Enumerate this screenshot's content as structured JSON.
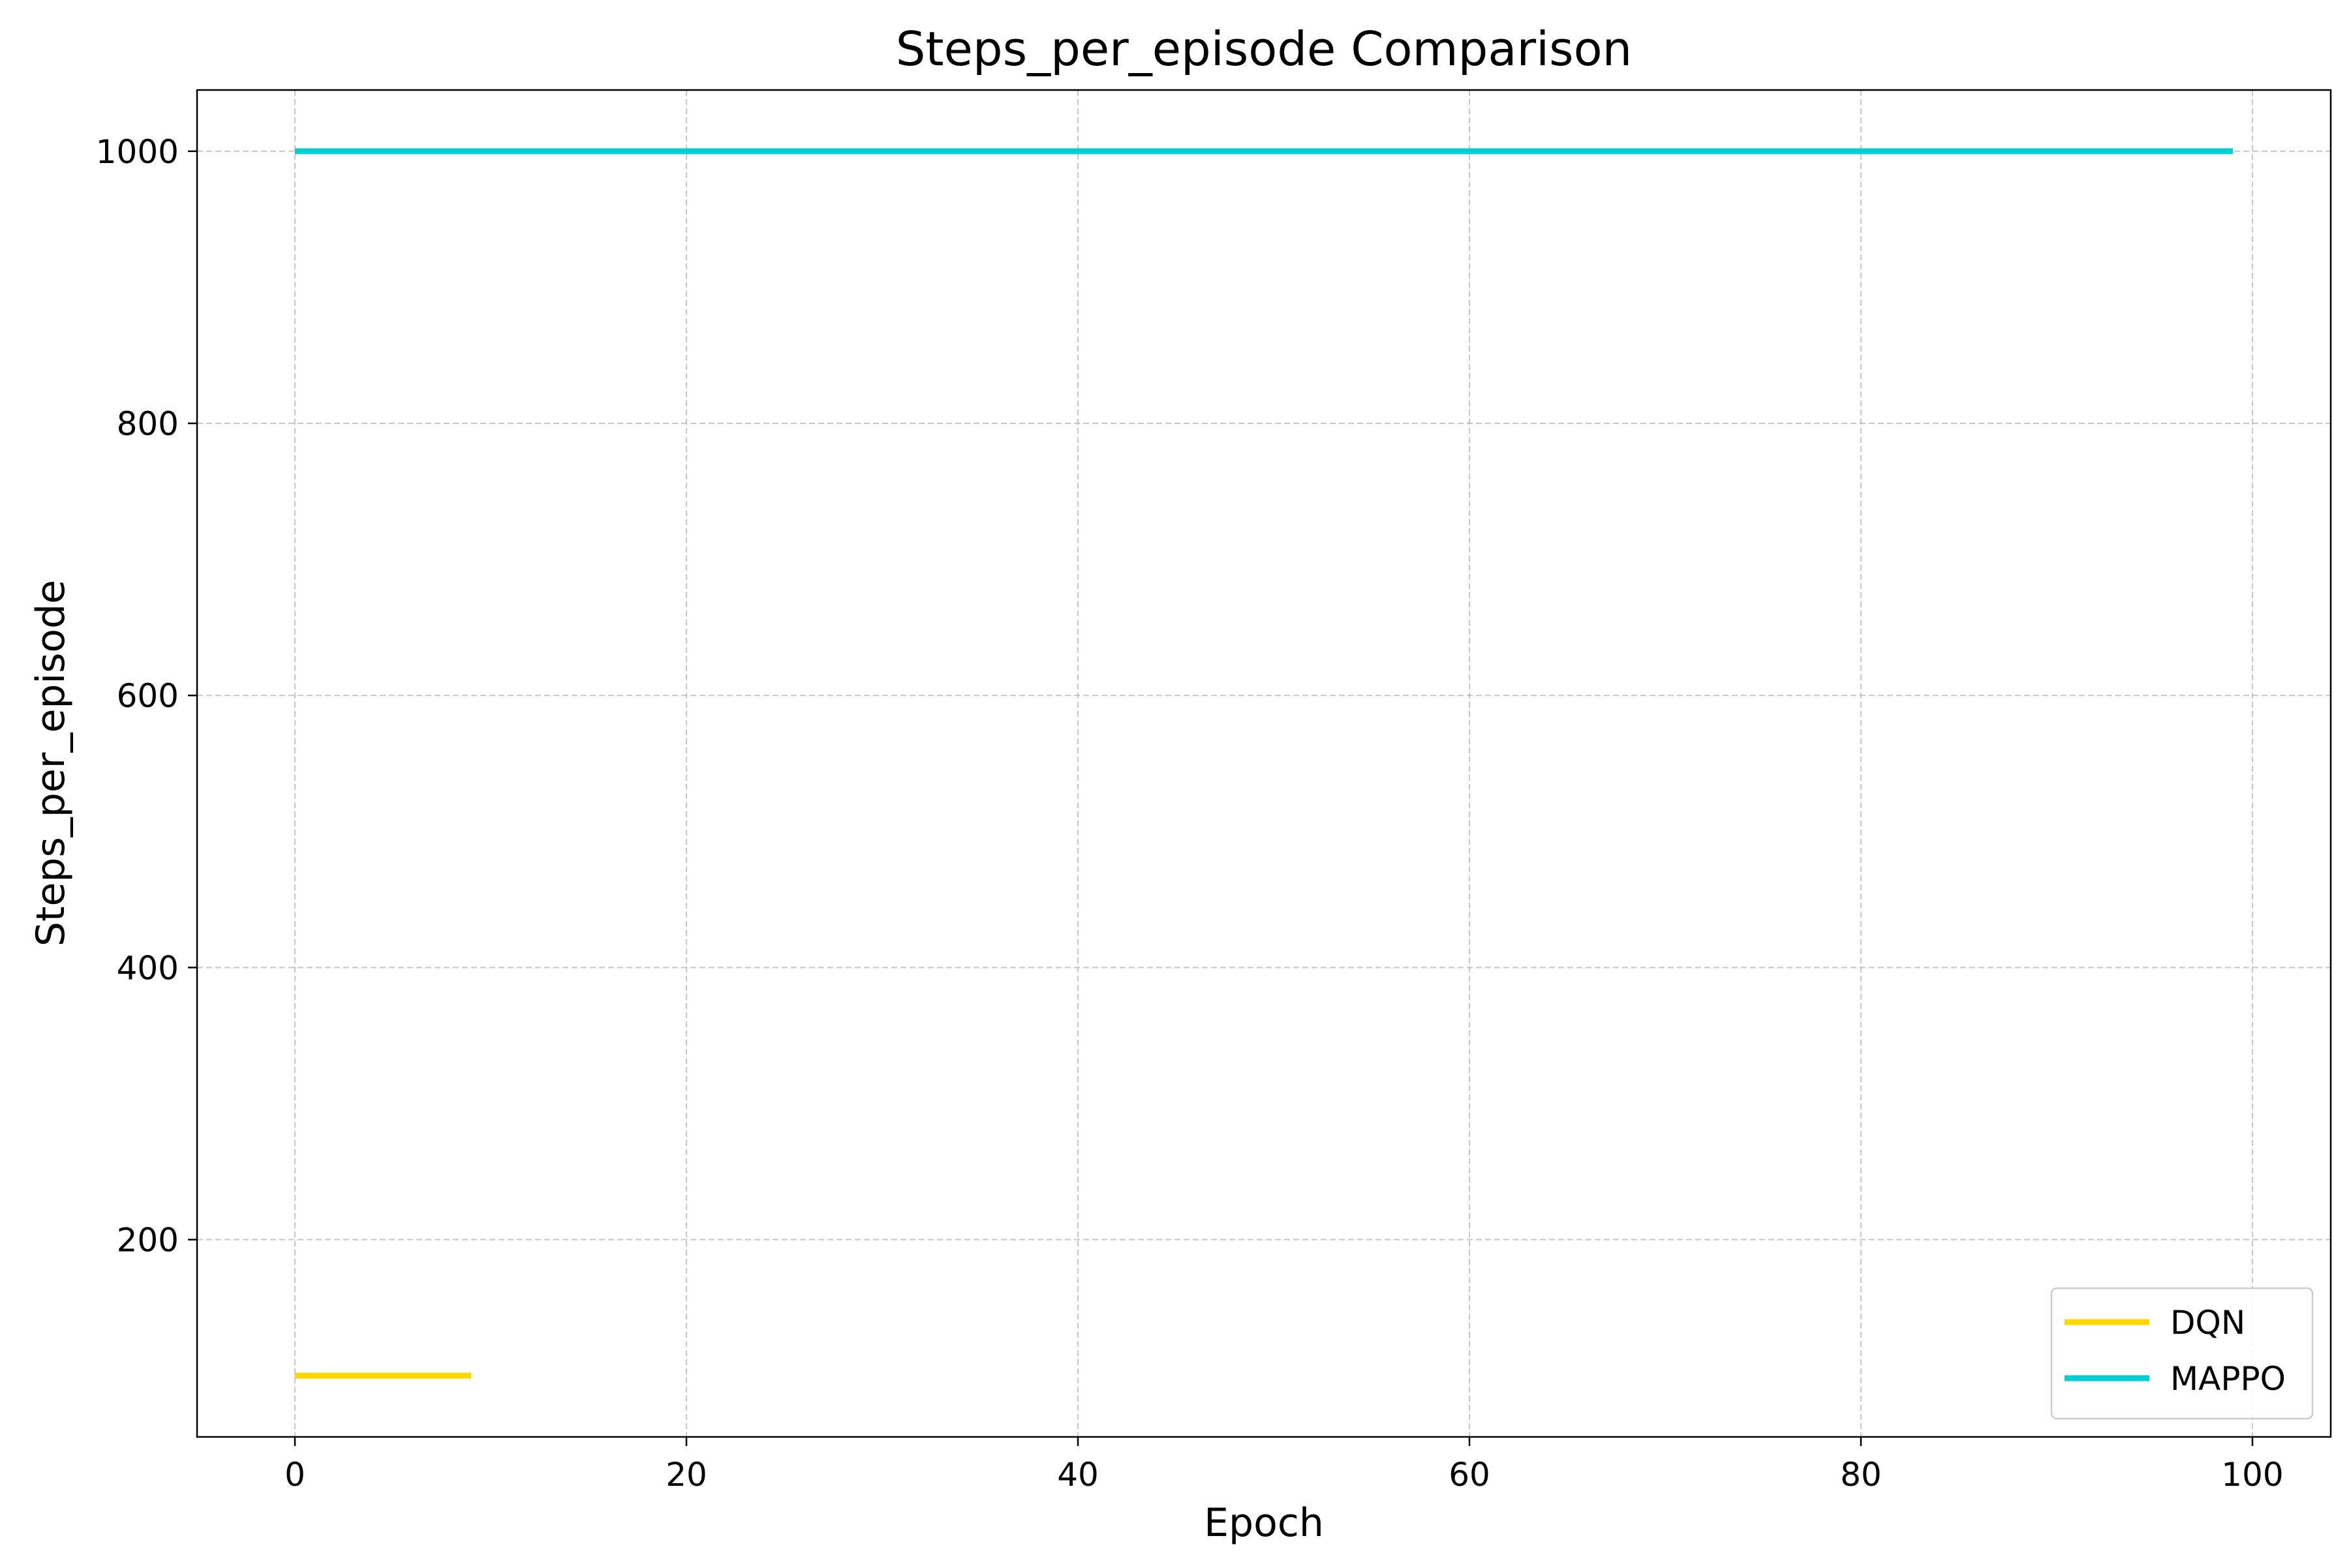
{
  "chart_data": {
    "type": "line",
    "title": "Steps_per_episode Comparison",
    "xlabel": "Epoch",
    "ylabel": "Steps_per_episode",
    "xlim": [
      -5,
      104
    ],
    "ylim": [
      55,
      1045
    ],
    "xticks": [
      0,
      20,
      40,
      60,
      80,
      100
    ],
    "yticks": [
      200,
      400,
      600,
      800,
      1000
    ],
    "grid": true,
    "legend_position": "bottom-right",
    "series": [
      {
        "name": "DQN",
        "color": "#FFD700",
        "x": [
          0,
          1,
          2,
          3,
          4,
          5,
          6,
          7,
          8,
          9
        ],
        "y": [
          100,
          100,
          100,
          100,
          100,
          100,
          100,
          100,
          100,
          100
        ]
      },
      {
        "name": "MAPPO",
        "color": "#00CED1",
        "x": [
          0,
          5,
          10,
          15,
          20,
          25,
          30,
          35,
          40,
          45,
          50,
          55,
          60,
          65,
          70,
          75,
          80,
          85,
          90,
          95,
          99
        ],
        "y": [
          1000,
          1000,
          1000,
          1000,
          1000,
          1000,
          1000,
          1000,
          1000,
          1000,
          1000,
          1000,
          1000,
          1000,
          1000,
          1000,
          1000,
          1000,
          1000,
          1000,
          1000
        ]
      }
    ]
  }
}
